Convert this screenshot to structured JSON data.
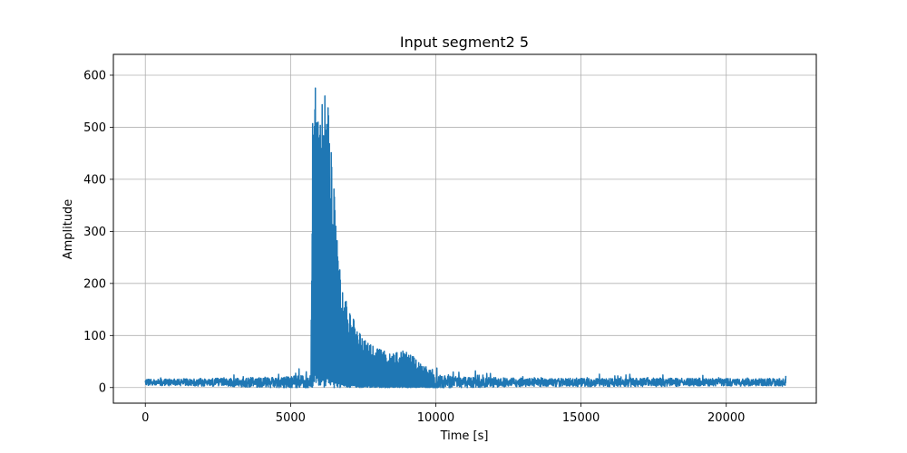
{
  "chart_data": {
    "type": "line",
    "title": "Input segment2 5",
    "xlabel": "Time [s]",
    "ylabel": "Amplitude",
    "xlim": [
      -1100,
      23100
    ],
    "ylim": [
      -30,
      640
    ],
    "xticks": [
      0,
      5000,
      10000,
      15000,
      20000
    ],
    "yticks": [
      0,
      100,
      200,
      300,
      400,
      500,
      600
    ],
    "grid": true,
    "line_color": "#1f77b4",
    "series": [
      {
        "x_start": 0,
        "x_end": 22050,
        "baseline_level": 10,
        "noise_band": [
          0,
          20
        ],
        "envelope": [
          {
            "x": 0,
            "y": 15
          },
          {
            "x": 3000,
            "y": 20
          },
          {
            "x": 5000,
            "y": 28
          },
          {
            "x": 5700,
            "y": 33
          },
          {
            "x": 5760,
            "y": 545
          },
          {
            "x": 5850,
            "y": 585
          },
          {
            "x": 6000,
            "y": 560
          },
          {
            "x": 6200,
            "y": 612
          },
          {
            "x": 6400,
            "y": 495
          },
          {
            "x": 6600,
            "y": 300
          },
          {
            "x": 6800,
            "y": 195
          },
          {
            "x": 7000,
            "y": 150
          },
          {
            "x": 7300,
            "y": 120
          },
          {
            "x": 7600,
            "y": 90
          },
          {
            "x": 8000,
            "y": 75
          },
          {
            "x": 8500,
            "y": 65
          },
          {
            "x": 9000,
            "y": 72
          },
          {
            "x": 9500,
            "y": 45
          },
          {
            "x": 10000,
            "y": 32
          },
          {
            "x": 11000,
            "y": 25
          },
          {
            "x": 13000,
            "y": 20
          },
          {
            "x": 16000,
            "y": 20
          },
          {
            "x": 18000,
            "y": 20
          },
          {
            "x": 20000,
            "y": 18
          },
          {
            "x": 22050,
            "y": 18
          }
        ]
      }
    ]
  }
}
